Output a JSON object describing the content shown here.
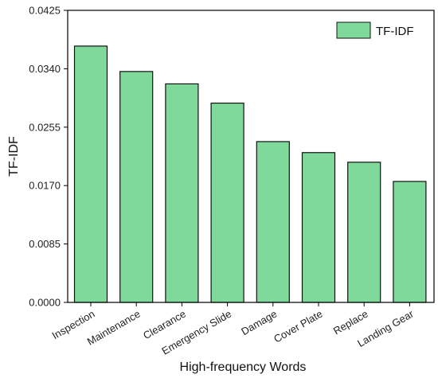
{
  "chart_data": {
    "type": "bar",
    "categories": [
      "Inspection",
      "Maintenance",
      "Clearance",
      "Emergency Slide",
      "Damage",
      "Cover Plate",
      "Replace",
      "Landing Gear"
    ],
    "series": [
      {
        "name": "TF-IDF",
        "values": [
          0.0373,
          0.0336,
          0.0318,
          0.029,
          0.0234,
          0.0218,
          0.0204,
          0.0176
        ]
      }
    ],
    "xlabel": "High-frequency Words",
    "ylabel": "TF-IDF",
    "ylim": [
      0,
      0.0425
    ],
    "yticks": [
      "0.0000",
      "0.0085",
      "0.0170",
      "0.0255",
      "0.0340",
      "0.0425"
    ],
    "grid": false,
    "legend_position": "top-right",
    "colors": {
      "bar_fill": "#7fd99a",
      "bar_stroke": "#111111",
      "axis": "#000000"
    }
  }
}
